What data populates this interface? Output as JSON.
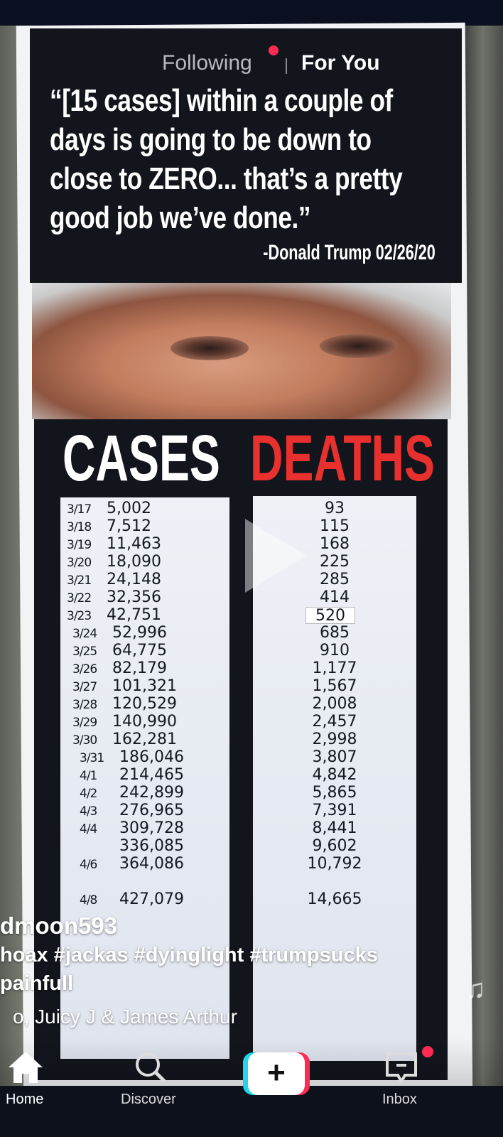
{
  "header": {
    "tabs": [
      {
        "label": "Following",
        "active": false,
        "has_notification_dot": true
      },
      {
        "label": "For You",
        "active": true
      }
    ]
  },
  "video": {
    "poster_quote": [
      "“[15 cases] within a couple of",
      "days is going to be down to",
      "close to ZERO... that’s a pretty",
      "good job we’ve done.”"
    ],
    "poster_attribution": "-Donald Trump 02/26/20",
    "cases_heading": "CASES",
    "deaths_heading": "DEATHS",
    "rows": [
      {
        "date": "3/17",
        "cases": "5,002",
        "deaths": "93"
      },
      {
        "date": "3/18",
        "cases": "7,512",
        "deaths": "115"
      },
      {
        "date": "3/19",
        "cases": "11,463",
        "deaths": "168"
      },
      {
        "date": "3/20",
        "cases": "18,090",
        "deaths": "225"
      },
      {
        "date": "3/21",
        "cases": "24,148",
        "deaths": "285"
      },
      {
        "date": "3/22",
        "cases": "32,356",
        "deaths": "414"
      },
      {
        "date": "3/23",
        "cases": "42,751",
        "deaths": "520"
      },
      {
        "date": "3/24",
        "cases": "52,996",
        "deaths": "685"
      },
      {
        "date": "3/25",
        "cases": "64,775",
        "deaths": "910"
      },
      {
        "date": "3/26",
        "cases": "82,179",
        "deaths": "1,177"
      },
      {
        "date": "3/27",
        "cases": "101,321",
        "deaths": "1,567"
      },
      {
        "date": "3/28",
        "cases": "120,529",
        "deaths": "2,008"
      },
      {
        "date": "3/29",
        "cases": "140,990",
        "deaths": "2,457"
      },
      {
        "date": "3/30",
        "cases": "162,281",
        "deaths": "2,998"
      },
      {
        "date": "3/31",
        "cases": "186,046",
        "deaths": "3,807"
      },
      {
        "date": "4/1",
        "cases": "214,465",
        "deaths": "4,842"
      },
      {
        "date": "4/2",
        "cases": "242,899",
        "deaths": "5,865"
      },
      {
        "date": "4/3",
        "cases": "276,965",
        "deaths": "7,391"
      },
      {
        "date": "4/4",
        "cases": "309,728",
        "deaths": "8,441"
      },
      {
        "date": "",
        "cases": "336,085",
        "deaths": "9,602"
      },
      {
        "date": "4/6",
        "cases": "364,086",
        "deaths": "10,792"
      },
      {
        "date": "",
        "cases": "",
        "deaths": ""
      },
      {
        "date": "4/8",
        "cases": "427,079",
        "deaths": "14,665"
      }
    ]
  },
  "overlay": {
    "username": "dmoon593",
    "caption_line1": "hoax #jackas #dyinglight #trumpsucks",
    "caption_line2": "painfull",
    "music": "o, Juicy J & James Arthur"
  },
  "nav": {
    "home": "Home",
    "discover": "Discover",
    "create": "+",
    "inbox": "Inbox",
    "inbox_has_notification": true
  },
  "colors": {
    "accent_red": "#fe2c55",
    "accent_cyan": "#20d5ec",
    "deaths_red": "#e8302e"
  }
}
